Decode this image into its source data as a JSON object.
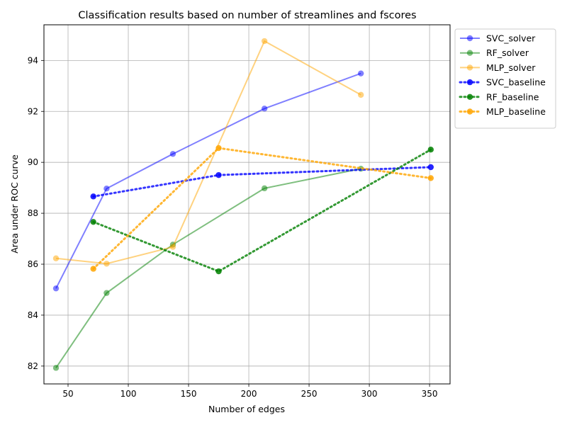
{
  "chart_data": {
    "type": "line",
    "title": "Classification results based on number of streamlines and fscores",
    "xlabel": "Number of edges",
    "ylabel": "Area under ROC curve",
    "xlim": [
      30,
      367
    ],
    "ylim": [
      81.3,
      95.4
    ],
    "xticks": [
      "50",
      "100",
      "150",
      "200",
      "250",
      "300",
      "350"
    ],
    "yticks": [
      "82",
      "84",
      "86",
      "88",
      "90",
      "92",
      "94"
    ],
    "grid": true,
    "legend_position": "outside-top-right",
    "series": [
      {
        "name": "SVC_solver",
        "style": "solid",
        "color": "#0000ff",
        "x": [
          40,
          82,
          137,
          213,
          293
        ],
        "y": [
          85.05,
          88.97,
          90.33,
          92.11,
          93.49
        ]
      },
      {
        "name": "RF_solver",
        "style": "solid",
        "color": "#008000",
        "x": [
          40,
          82,
          137,
          213,
          293
        ],
        "y": [
          81.93,
          84.87,
          86.77,
          88.98,
          89.75
        ]
      },
      {
        "name": "MLP_solver",
        "style": "solid",
        "color": "#ffa500",
        "x": [
          40,
          82,
          137,
          213,
          293
        ],
        "y": [
          86.23,
          86.02,
          86.68,
          94.76,
          92.65
        ]
      },
      {
        "name": "SVC_baseline",
        "style": "dotted",
        "color": "#0000ff",
        "x": [
          71,
          175,
          351
        ],
        "y": [
          88.66,
          89.5,
          89.81
        ]
      },
      {
        "name": "RF_baseline",
        "style": "dotted",
        "color": "#008000",
        "x": [
          71,
          175,
          351
        ],
        "y": [
          87.66,
          85.72,
          90.5
        ]
      },
      {
        "name": "MLP_baseline",
        "style": "dotted",
        "color": "#ffa500",
        "x": [
          71,
          175,
          351
        ],
        "y": [
          85.82,
          90.56,
          89.38
        ]
      }
    ]
  }
}
